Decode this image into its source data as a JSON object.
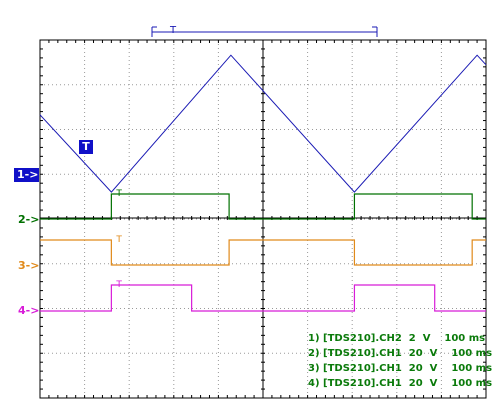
{
  "chart_data": {
    "type": "line",
    "title": "",
    "xlabel": "",
    "ylabel": "",
    "grid": true,
    "xlim": [
      0,
      1000
    ],
    "x_unit": "ms",
    "time_per_div_ms": 100,
    "divisions": {
      "horizontal": 10,
      "vertical": 8
    },
    "series": [
      {
        "name": "1) [TDS210].CH2  2  V    100 ms",
        "channel_marker": "1->",
        "color": "#1a1ab4",
        "shape": "triangle",
        "x": [
          0,
          160,
          428,
          705,
          980,
          1000
        ],
        "y": [
          3.8,
          -1.0,
          7.5,
          -1.0,
          7.5,
          6.9
        ],
        "y_unit": "V"
      },
      {
        "name": "2) [TDS210].CH1  20  V    100 ms",
        "channel_marker": "2->",
        "color": "#007000",
        "shape": "square",
        "high_intervals": [
          [
            160,
            424
          ],
          [
            705,
            969
          ]
        ],
        "low": 0,
        "high": 20,
        "y_unit": "V"
      },
      {
        "name": "3) [TDS210].CH1  20  V    100 ms",
        "channel_marker": "3->",
        "color": "#e08a1a",
        "shape": "square",
        "high_intervals": [
          [
            0,
            160
          ],
          [
            424,
            705
          ],
          [
            969,
            1000
          ]
        ],
        "low": 0,
        "high": 20,
        "y_unit": "V"
      },
      {
        "name": "4) [TDS210].CH1  20  V    100 ms",
        "channel_marker": "4->",
        "color": "#d81cd8",
        "shape": "square",
        "high_intervals": [
          [
            160,
            340
          ],
          [
            705,
            885
          ]
        ],
        "low": 0,
        "high": 20,
        "y_unit": "V"
      }
    ],
    "trigger_marker": "T",
    "trigger_time_ms": 160
  },
  "labels": {
    "ch1": "1->",
    "ch2": "2->",
    "ch3": "3->",
    "ch4": "4->",
    "trigger": "T"
  },
  "legend": [
    "1) [TDS210].CH2  2  V    100 ms",
    "2) [TDS210].CH1  20  V    100 ms",
    "3) [TDS210].CH1  20  V    100 ms",
    "4) [TDS210].CH1  20  V    100 ms"
  ]
}
